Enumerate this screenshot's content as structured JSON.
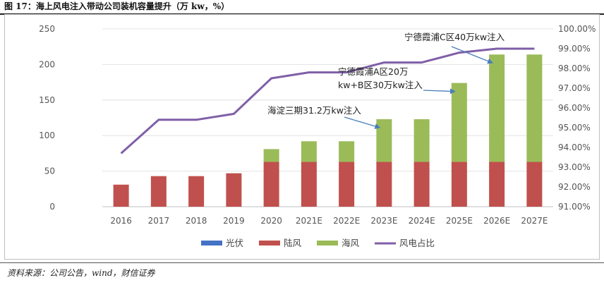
{
  "figure": {
    "title": "图 17：海上风电注入带动公司装机容量提升（万 kw，%）",
    "source": "资料来源：公司公告，wind，财信证券"
  },
  "chart_data": {
    "type": "bar",
    "stacked": true,
    "categories": [
      "2016",
      "2017",
      "2018",
      "2019",
      "2020",
      "2021E",
      "2022E",
      "2023E",
      "2024E",
      "2025E",
      "2026E",
      "2027E"
    ],
    "series": [
      {
        "name": "光伏",
        "type": "bar",
        "axis": "left",
        "color": "#4472C4",
        "values": [
          0,
          0,
          0,
          0,
          0,
          0,
          0,
          0,
          0,
          0,
          0,
          0
        ]
      },
      {
        "name": "陆风",
        "type": "bar",
        "axis": "left",
        "color": "#C0504D",
        "values": [
          31,
          43,
          43,
          47,
          63,
          63,
          63,
          63,
          63,
          63,
          63,
          63
        ]
      },
      {
        "name": "海风",
        "type": "bar",
        "axis": "left",
        "color": "#9BBB59",
        "values": [
          0,
          0,
          0,
          0,
          18,
          29,
          29,
          60,
          60,
          111,
          151,
          151
        ]
      },
      {
        "name": "风电占比",
        "type": "line",
        "axis": "right",
        "color": "#7F5FA8",
        "values": [
          93.7,
          95.4,
          95.4,
          95.7,
          97.5,
          97.8,
          97.8,
          98.3,
          98.3,
          98.8,
          99.0,
          99.0
        ]
      }
    ],
    "y_left": {
      "min": 0,
      "max": 250,
      "ticks": [
        "0",
        "50",
        "100",
        "150",
        "200",
        "250"
      ]
    },
    "y_right": {
      "min": 91,
      "max": 100,
      "ticks": [
        "91.00%",
        "92.00%",
        "93.00%",
        "94.00%",
        "95.00%",
        "96.00%",
        "97.00%",
        "98.00%",
        "99.00%",
        "100.00%"
      ]
    },
    "annotations": [
      {
        "lines": [
          "宁德霞浦C区40万kw注入"
        ],
        "target_category": "2026E"
      },
      {
        "lines": [
          "宁德霞浦A区20万",
          "kw+B区30万kw注入"
        ],
        "target_category": "2025E"
      },
      {
        "lines": [
          "海淀三期31.2万kw注入"
        ],
        "target_category": "2023E"
      }
    ],
    "legend": [
      "光伏",
      "陆风",
      "海风",
      "风电占比"
    ],
    "legend_position": "bottom"
  }
}
